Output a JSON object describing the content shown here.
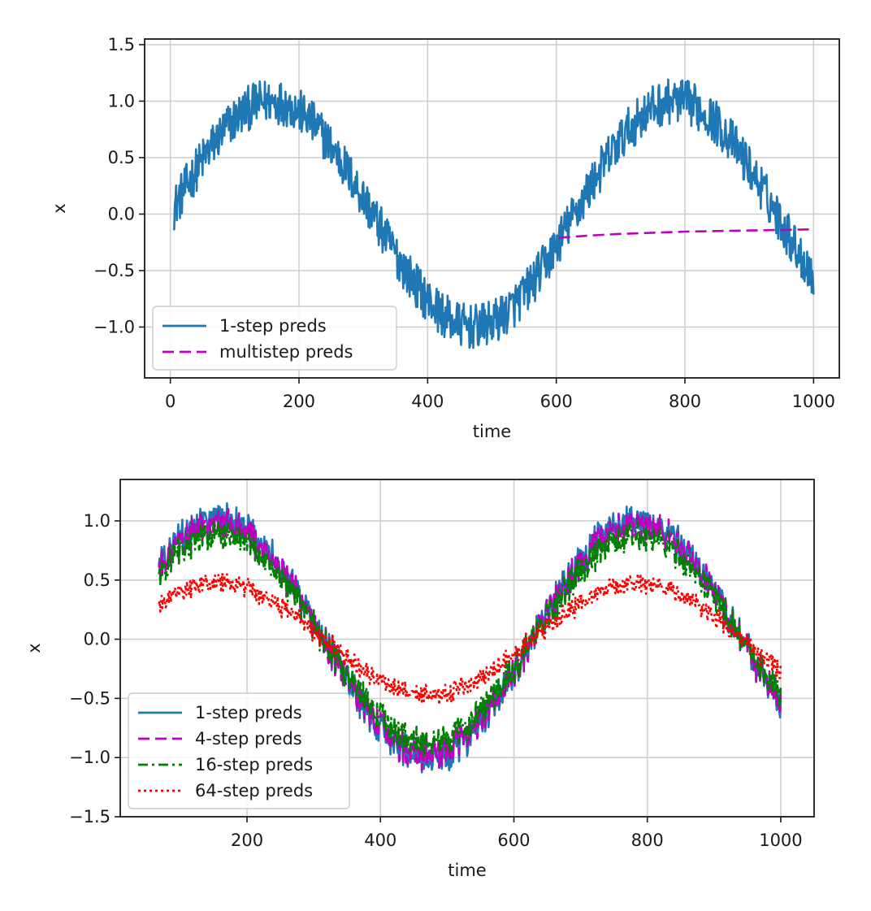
{
  "chart_data": [
    {
      "type": "line",
      "xlabel": "time",
      "ylabel": "x",
      "xlim": [
        -40,
        1040
      ],
      "ylim": [
        -1.45,
        1.55
      ],
      "xticks": [
        0,
        200,
        400,
        600,
        800,
        1000
      ],
      "yticks": [
        -1.0,
        -0.5,
        0.0,
        0.5,
        1.0,
        1.5
      ],
      "xtick_labels": [
        "0",
        "200",
        "400",
        "600",
        "800",
        "1000"
      ],
      "ytick_labels": [
        "−1.0",
        "−0.5",
        "0.0",
        "0.5",
        "1.0",
        "1.5"
      ],
      "grid": true,
      "legend_position": "lower-left",
      "series": [
        {
          "name": "1-step preds",
          "color": "#1f77b4",
          "style": "solid",
          "x_range": [
            5,
            1000
          ],
          "signal": "sin(0.01*t)",
          "noise_amplitude": 0.2
        },
        {
          "name": "multistep preds",
          "color": "#bf00bf",
          "style": "dashed",
          "x": [
            604,
            650,
            700,
            750,
            800,
            850,
            900,
            950,
            1000
          ],
          "values": [
            -0.21,
            -0.19,
            -0.175,
            -0.165,
            -0.155,
            -0.15,
            -0.145,
            -0.14,
            -0.135
          ]
        }
      ]
    },
    {
      "type": "line",
      "xlabel": "time",
      "ylabel": "x",
      "xlim": [
        10,
        1050
      ],
      "ylim": [
        -1.5,
        1.35
      ],
      "xticks": [
        200,
        400,
        600,
        800,
        1000
      ],
      "yticks": [
        -1.5,
        -1.0,
        -0.5,
        0.0,
        0.5,
        1.0
      ],
      "xtick_labels": [
        "200",
        "400",
        "600",
        "800",
        "1000"
      ],
      "ytick_labels": [
        "−1.5",
        "−1.0",
        "−0.5",
        "0.0",
        "0.5",
        "1.0"
      ],
      "grid": true,
      "legend_position": "lower-left",
      "series": [
        {
          "name": "1-step preds",
          "color": "#1f77b4",
          "style": "solid",
          "x_range": [
            68,
            1000
          ],
          "signal": "sin(0.01*t)",
          "amplitude": 1.0
        },
        {
          "name": "4-step preds",
          "color": "#bf00bf",
          "style": "dashed",
          "x_range": [
            68,
            1000
          ],
          "signal": "sin(0.01*t)",
          "amplitude": 0.96
        },
        {
          "name": "16-step preds",
          "color": "#008000",
          "style": "dashdot",
          "x_range": [
            68,
            1000
          ],
          "signal": "sin(0.01*t)",
          "amplitude": 0.87
        },
        {
          "name": "64-step preds",
          "color": "#ff0000",
          "style": "dotted",
          "x_range": [
            68,
            1000
          ],
          "signal": "sin(0.01*t)",
          "amplitude": 0.47
        }
      ]
    }
  ]
}
